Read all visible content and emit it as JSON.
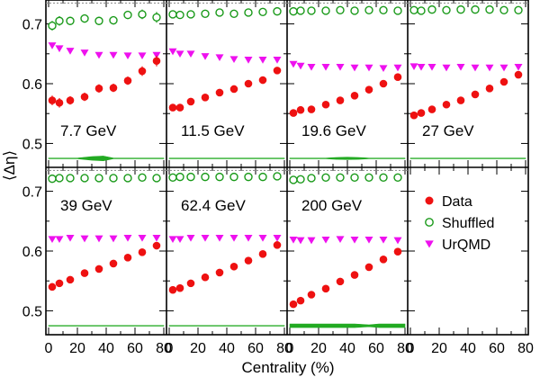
{
  "chart_data": {
    "type": "scatter",
    "xlabel": "Centrality (%)",
    "ylabel": "⟨Δη⟩",
    "xlim": [
      0,
      80
    ],
    "ylim": [
      0.46,
      0.74
    ],
    "x_ticks": [
      "0",
      "20",
      "40",
      "60",
      "80"
    ],
    "y_ticks": [
      "0.5",
      "0.6",
      "0.7"
    ],
    "reference_line": 0.735,
    "colors": {
      "data": "#ee1111",
      "shuffled": "#1a9a1a",
      "urqmd": "#ee11ee",
      "band": "#22aa22",
      "reference": "#888888"
    },
    "legend": {
      "placement": "bottom-right panel",
      "entries": [
        "Data",
        "Shuffled",
        "UrQMD"
      ]
    },
    "panels": [
      {
        "energy": "7.7 GeV",
        "data": {
          "x": [
            2.5,
            7.5,
            15,
            25,
            35,
            45,
            55,
            65,
            75
          ],
          "y": [
            0.572,
            0.568,
            0.572,
            0.578,
            0.592,
            0.593,
            0.605,
            0.621,
            0.638
          ],
          "err": [
            0.008,
            0.008,
            0.007,
            0.007,
            0.007,
            0.007,
            0.007,
            0.008,
            0.009
          ]
        },
        "shuffled": {
          "x": [
            2.5,
            7.5,
            15,
            25,
            35,
            45,
            55,
            65,
            75
          ],
          "y": [
            0.697,
            0.705,
            0.705,
            0.709,
            0.705,
            0.706,
            0.715,
            0.716,
            0.711
          ],
          "err": [
            0.008,
            0.008,
            0.007,
            0.007,
            0.007,
            0.007,
            0.007,
            0.008,
            0.009
          ]
        },
        "urqmd": {
          "x": [
            2.5,
            7.5,
            15,
            25,
            35,
            45,
            55,
            65,
            75
          ],
          "y": [
            0.664,
            0.659,
            0.655,
            0.652,
            0.648,
            0.648,
            0.647,
            0.647,
            0.648
          ]
        },
        "band": {
          "x": [
            0,
            20,
            30,
            38,
            45,
            60,
            80
          ],
          "half_width": [
            0.0006,
            0.0006,
            0.003,
            0.004,
            0.0006,
            0.0006,
            0.0006
          ]
        }
      },
      {
        "energy": "11.5 GeV",
        "data": {
          "x": [
            2.5,
            7.5,
            15,
            25,
            35,
            45,
            55,
            65,
            75
          ],
          "y": [
            0.56,
            0.56,
            0.57,
            0.577,
            0.585,
            0.591,
            0.6,
            0.606,
            0.622
          ],
          "err": [
            0.005,
            0.005,
            0.004,
            0.004,
            0.004,
            0.004,
            0.004,
            0.004,
            0.005
          ]
        },
        "shuffled": {
          "x": [
            2.5,
            7.5,
            15,
            25,
            35,
            45,
            55,
            65,
            75
          ],
          "y": [
            0.716,
            0.715,
            0.716,
            0.717,
            0.719,
            0.717,
            0.719,
            0.72,
            0.721
          ]
        },
        "urqmd": {
          "x": [
            2.5,
            7.5,
            15,
            25,
            35,
            45,
            55,
            65,
            75
          ],
          "y": [
            0.654,
            0.65,
            0.65,
            0.646,
            0.644,
            0.641,
            0.64,
            0.64,
            0.64
          ]
        },
        "band": {
          "x": [
            0,
            80
          ],
          "half_width": [
            0.0006,
            0.0006
          ]
        }
      },
      {
        "energy": "19.6 GeV",
        "data": {
          "x": [
            2.5,
            7.5,
            15,
            25,
            35,
            45,
            55,
            65,
            75
          ],
          "y": [
            0.551,
            0.556,
            0.557,
            0.565,
            0.572,
            0.58,
            0.59,
            0.6,
            0.611
          ]
        },
        "shuffled": {
          "x": [
            2.5,
            7.5,
            15,
            25,
            35,
            45,
            55,
            65,
            75
          ],
          "y": [
            0.721,
            0.722,
            0.722,
            0.722,
            0.723,
            0.722,
            0.723,
            0.723,
            0.722
          ]
        },
        "urqmd": {
          "x": [
            2.5,
            7.5,
            15,
            25,
            35,
            45,
            55,
            65,
            75
          ],
          "y": [
            0.633,
            0.63,
            0.628,
            0.628,
            0.628,
            0.627,
            0.627,
            0.626,
            0.627
          ]
        },
        "band": {
          "x": [
            0,
            25,
            32,
            40,
            48,
            55,
            80
          ],
          "half_width": [
            0.0006,
            0.0006,
            0.0015,
            0.002,
            0.0015,
            0.0006,
            0.0006
          ]
        }
      },
      {
        "energy": "27 GeV",
        "data": {
          "x": [
            2.5,
            7.5,
            15,
            25,
            35,
            45,
            55,
            65,
            75
          ],
          "y": [
            0.547,
            0.551,
            0.557,
            0.565,
            0.572,
            0.582,
            0.592,
            0.603,
            0.615
          ]
        },
        "shuffled": {
          "x": [
            2.5,
            7.5,
            15,
            25,
            35,
            45,
            55,
            65,
            75
          ],
          "y": [
            0.723,
            0.722,
            0.724,
            0.723,
            0.724,
            0.724,
            0.724,
            0.723,
            0.723
          ]
        },
        "urqmd": {
          "x": [
            2.5,
            7.5,
            15,
            25,
            35,
            45,
            55,
            65,
            75
          ],
          "y": [
            0.629,
            0.628,
            0.628,
            0.627,
            0.628,
            0.627,
            0.627,
            0.627,
            0.628
          ]
        },
        "band": {
          "x": [
            0,
            80
          ],
          "half_width": [
            0.0006,
            0.0006
          ]
        }
      },
      {
        "energy": "39 GeV",
        "data": {
          "x": [
            2.5,
            7.5,
            15,
            25,
            35,
            45,
            55,
            65,
            75
          ],
          "y": [
            0.54,
            0.546,
            0.552,
            0.563,
            0.57,
            0.579,
            0.589,
            0.598,
            0.609
          ]
        },
        "shuffled": {
          "x": [
            2.5,
            7.5,
            15,
            25,
            35,
            45,
            55,
            65,
            75
          ],
          "y": [
            0.721,
            0.722,
            0.722,
            0.722,
            0.722,
            0.722,
            0.722,
            0.723,
            0.722
          ]
        },
        "urqmd": {
          "x": [
            2.5,
            7.5,
            15,
            25,
            35,
            45,
            55,
            65,
            75
          ],
          "y": [
            0.62,
            0.62,
            0.622,
            0.621,
            0.621,
            0.621,
            0.622,
            0.622,
            0.622
          ]
        },
        "band": {
          "x": [
            0,
            80
          ],
          "half_width": [
            0.0006,
            0.0006
          ]
        }
      },
      {
        "energy": "62.4 GeV",
        "data": {
          "x": [
            2.5,
            7.5,
            15,
            25,
            35,
            45,
            55,
            65,
            75
          ],
          "y": [
            0.535,
            0.538,
            0.546,
            0.556,
            0.564,
            0.574,
            0.584,
            0.595,
            0.61
          ]
        },
        "shuffled": {
          "x": [
            2.5,
            7.5,
            15,
            25,
            35,
            45,
            55,
            65,
            75
          ],
          "y": [
            0.723,
            0.724,
            0.724,
            0.724,
            0.724,
            0.724,
            0.724,
            0.724,
            0.725
          ]
        },
        "urqmd": {
          "x": [
            2.5,
            7.5,
            15,
            25,
            35,
            45,
            55,
            65,
            75
          ],
          "y": [
            0.62,
            0.62,
            0.622,
            0.622,
            0.622,
            0.622,
            0.622,
            0.622,
            0.622
          ]
        },
        "band": {
          "x": [
            0,
            80
          ],
          "half_width": [
            0.0006,
            0.0006
          ]
        }
      },
      {
        "energy": "200 GeV",
        "data": {
          "x": [
            2.5,
            7.5,
            15,
            25,
            35,
            45,
            55,
            65,
            75
          ],
          "y": [
            0.511,
            0.517,
            0.527,
            0.537,
            0.549,
            0.56,
            0.573,
            0.586,
            0.599
          ]
        },
        "shuffled": {
          "x": [
            2.5,
            7.5,
            15,
            25,
            35,
            45,
            55,
            65,
            75
          ],
          "y": [
            0.719,
            0.72,
            0.722,
            0.723,
            0.723,
            0.723,
            0.723,
            0.723,
            0.723
          ]
        },
        "urqmd": {
          "x": [
            2.5,
            7.5,
            15,
            25,
            35,
            45,
            55,
            65,
            75
          ],
          "y": [
            0.619,
            0.618,
            0.618,
            0.619,
            0.62,
            0.619,
            0.619,
            0.619,
            0.618
          ]
        },
        "band": {
          "x": [
            0,
            10,
            20,
            30,
            45,
            55,
            62,
            70,
            80
          ],
          "half_width": [
            0.003,
            0.003,
            0.003,
            0.003,
            0.003,
            0.0015,
            0.003,
            0.003,
            0.003
          ]
        }
      }
    ]
  }
}
